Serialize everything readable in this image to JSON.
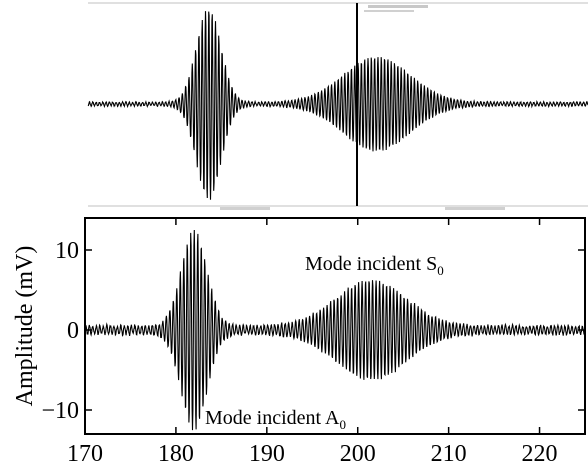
{
  "chart_data": [
    {
      "type": "line",
      "panel": "top",
      "title": "",
      "xlabel": "",
      "ylabel": "",
      "cursor_line": true,
      "grid": false,
      "legend": "none"
    },
    {
      "type": "line",
      "panel": "bottom",
      "xlabel": "",
      "ylabel": "Amplitude (mV)",
      "xlim": [
        170,
        225
      ],
      "ylim": [
        -13,
        14
      ],
      "xticks": [
        170,
        180,
        190,
        200,
        210,
        220
      ],
      "yticks": [
        -10,
        0,
        10
      ],
      "grid": false,
      "legend": "none",
      "annotations": [
        {
          "id": "s0",
          "text": "Mode incident S",
          "sub": "0"
        },
        {
          "id": "a0",
          "text": "Mode incident A",
          "sub": "0"
        }
      ],
      "series": [
        {
          "envelope": true,
          "packets": [
            {
              "center": 182,
              "amplitude": 12,
              "half_width": 2.2
            },
            {
              "center": 201.5,
              "amplitude": 5.8,
              "half_width": 6
            }
          ],
          "noise": 0.4
        }
      ]
    }
  ],
  "styles": {
    "trace_color": "#000000",
    "axis_color": "#000000",
    "top_frame_color": "#bbbbbb"
  }
}
